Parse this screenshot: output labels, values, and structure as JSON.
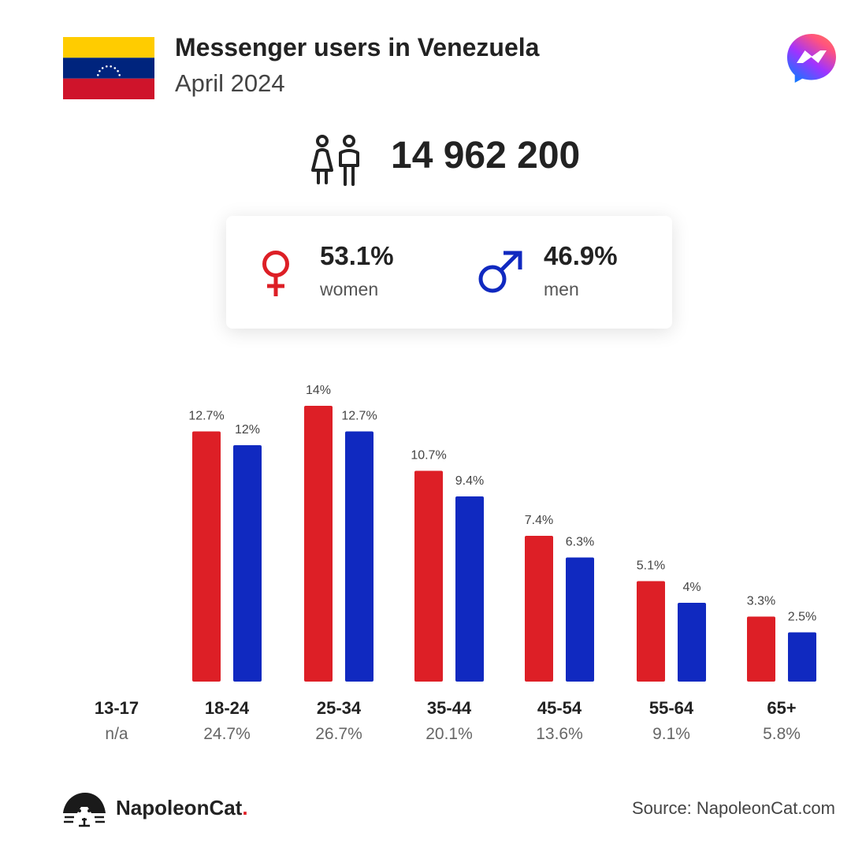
{
  "header": {
    "title": "Messenger users in Venezuela",
    "subtitle": "April 2024"
  },
  "summary": {
    "total_users": "14 962 200",
    "women": {
      "value": "53.1%",
      "label": "women",
      "color": "#dd1f26"
    },
    "men": {
      "value": "46.9%",
      "label": "men",
      "color": "#1029c0"
    }
  },
  "chart_data": {
    "type": "bar",
    "categories": [
      "13-17",
      "18-24",
      "25-34",
      "35-44",
      "45-54",
      "55-64",
      "65+"
    ],
    "category_shares": [
      "n/a",
      "24.7%",
      "26.7%",
      "20.1%",
      "13.6%",
      "9.1%",
      "5.8%"
    ],
    "series": [
      {
        "values": [
          null,
          12.7,
          14,
          10.7,
          7.4,
          5.1,
          3.3
        ],
        "labels": [
          "",
          "12.7%",
          "14%",
          "10.7%",
          "7.4%",
          "5.1%",
          "3.3%"
        ],
        "color": "#dd1f26"
      },
      {
        "values": [
          null,
          12,
          12.7,
          9.4,
          6.3,
          4,
          2.5
        ],
        "labels": [
          "",
          "12%",
          "12.7%",
          "9.4%",
          "6.3%",
          "4%",
          "2.5%"
        ],
        "color": "#1029c0"
      }
    ],
    "grid": false
  },
  "footer": {
    "brand_name": "NapoleonCat",
    "brand_dot": ".",
    "source": "Source: NapoleonCat.com"
  }
}
